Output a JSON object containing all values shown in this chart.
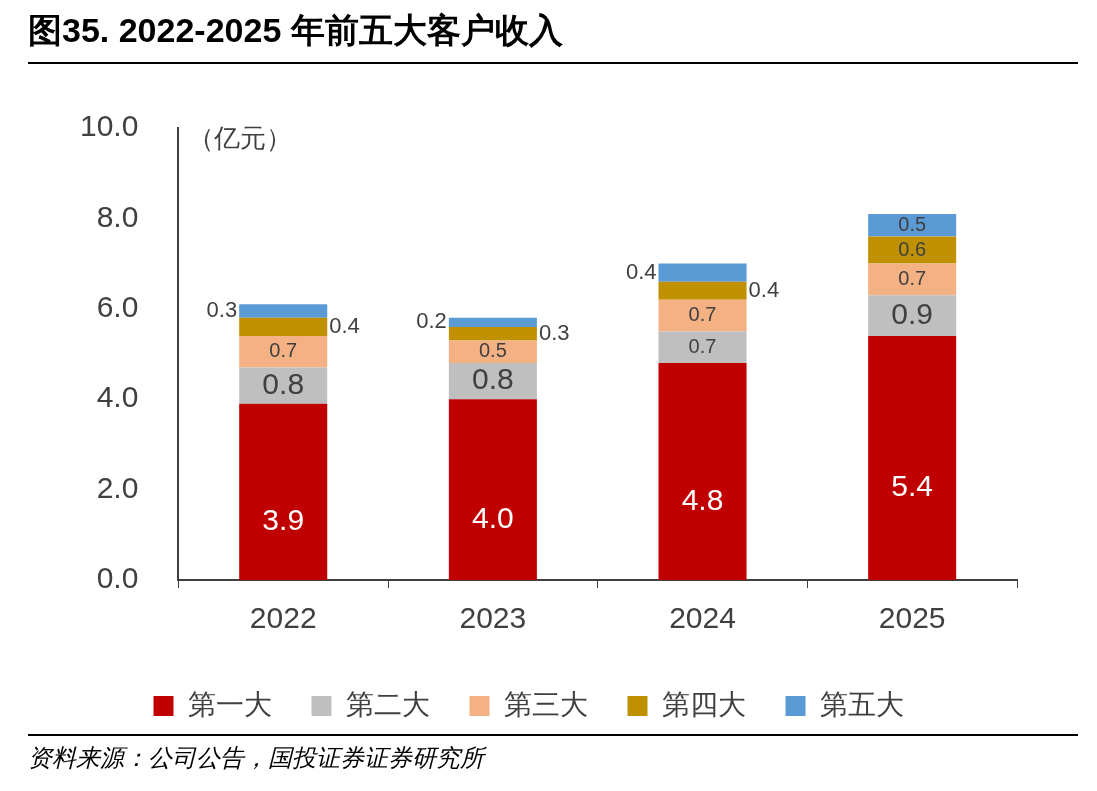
{
  "chart_data": {
    "type": "bar",
    "title": "图35. 2022-2025 年前五大客户收入",
    "ylabel": "（亿元）",
    "stacked": true,
    "legend": "bottom",
    "grid": false,
    "categories": [
      "2022",
      "2023",
      "2024",
      "2025"
    ],
    "ylim": [
      0,
      10
    ],
    "yticks": [
      {
        "value": 0,
        "label": "0.0"
      },
      {
        "value": 2,
        "label": "2.0"
      },
      {
        "value": 4,
        "label": "4.0"
      },
      {
        "value": 6,
        "label": "6.0"
      },
      {
        "value": 8,
        "label": "8.0"
      },
      {
        "value": 10,
        "label": "10.0"
      }
    ],
    "series": [
      {
        "name": "第一大",
        "color": "#c00000",
        "values": [
          3.9,
          4.0,
          4.8,
          5.4
        ],
        "value_labels": [
          "3.9",
          "4.0",
          "4.8",
          "5.4"
        ]
      },
      {
        "name": "第二大",
        "color": "#bfbfbf",
        "values": [
          0.8,
          0.8,
          0.7,
          0.9
        ],
        "value_labels": [
          "0.8",
          "0.8",
          "0.7",
          "0.9"
        ]
      },
      {
        "name": "第三大",
        "color": "#f4b183",
        "values": [
          0.7,
          0.5,
          0.7,
          0.7
        ],
        "value_labels": [
          "0.7",
          "0.5",
          "0.7",
          "0.7"
        ]
      },
      {
        "name": "第四大",
        "color": "#bf9000",
        "values": [
          0.4,
          0.3,
          0.4,
          0.6
        ],
        "value_labels": [
          "0.4",
          "0.3",
          "0.4",
          "0.6"
        ]
      },
      {
        "name": "第五大",
        "color": "#5b9bd5",
        "values": [
          0.3,
          0.2,
          0.4,
          0.5
        ],
        "value_labels": [
          "0.3",
          "0.2",
          "0.4",
          "0.5"
        ]
      }
    ],
    "annotations": [
      "资料来源：公司公告，国投证券证券研究所"
    ]
  }
}
